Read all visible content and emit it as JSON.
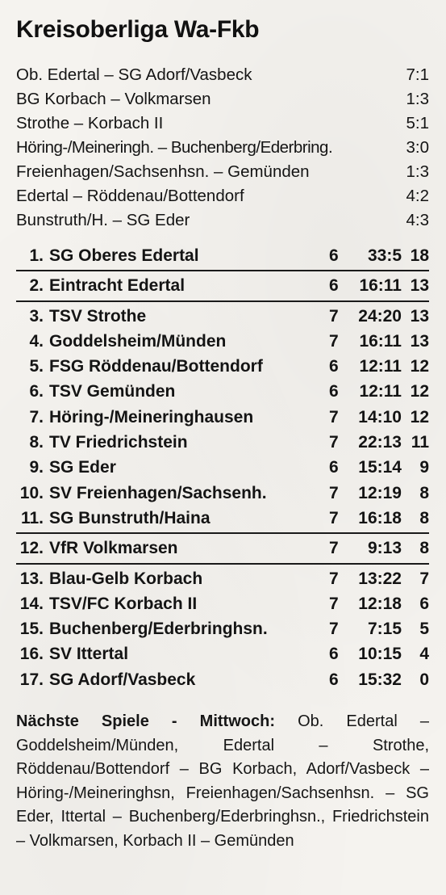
{
  "title": "Kreisoberliga Wa-Fkb",
  "results": [
    {
      "match": "Ob. Edertal – SG Adorf/Vasbeck",
      "score": "7:1"
    },
    {
      "match": "BG Korbach – Volkmarsen",
      "score": "1:3"
    },
    {
      "match": "Strothe – Korbach II",
      "score": "5:1"
    },
    {
      "match": "Höring-/Meineringh. – Buchenberg/Ederbring.",
      "score": "3:0"
    },
    {
      "match": "Freienhagen/Sachsenhsn. – Gemünden",
      "score": "1:3"
    },
    {
      "match": "Edertal – Röddenau/Bottendorf",
      "score": "4:2"
    },
    {
      "match": "Bunstruth/H. – SG Eder",
      "score": "4:3"
    }
  ],
  "table": [
    {
      "rank": "1.",
      "team": "SG Oberes Edertal",
      "games": "6",
      "goals": "33:5",
      "points": "18"
    },
    {
      "rank": "2.",
      "team": "Eintracht Edertal",
      "games": "6",
      "goals": "16:11",
      "points": "13"
    },
    {
      "rank": "3.",
      "team": "TSV Strothe",
      "games": "7",
      "goals": "24:20",
      "points": "13"
    },
    {
      "rank": "4.",
      "team": "Goddelsheim/Münden",
      "games": "7",
      "goals": "16:11",
      "points": "13"
    },
    {
      "rank": "5.",
      "team": "FSG Röddenau/Bottendorf",
      "games": "6",
      "goals": "12:11",
      "points": "12"
    },
    {
      "rank": "6.",
      "team": "TSV Gemünden",
      "games": "6",
      "goals": "12:11",
      "points": "12"
    },
    {
      "rank": "7.",
      "team": "Höring-/Meineringhausen",
      "games": "7",
      "goals": "14:10",
      "points": "12"
    },
    {
      "rank": "8.",
      "team": "TV Friedrichstein",
      "games": "7",
      "goals": "22:13",
      "points": "11"
    },
    {
      "rank": "9.",
      "team": "SG Eder",
      "games": "6",
      "goals": "15:14",
      "points": "9"
    },
    {
      "rank": "10.",
      "team": "SV Freienhagen/Sachsenh.",
      "games": "7",
      "goals": "12:19",
      "points": "8"
    },
    {
      "rank": "11.",
      "team": "SG Bunstruth/Haina",
      "games": "7",
      "goals": "16:18",
      "points": "8"
    },
    {
      "rank": "12.",
      "team": "VfR Volkmarsen",
      "games": "7",
      "goals": "9:13",
      "points": "8"
    },
    {
      "rank": "13.",
      "team": "Blau-Gelb Korbach",
      "games": "7",
      "goals": "13:22",
      "points": "7"
    },
    {
      "rank": "14.",
      "team": "TSV/FC Korbach II",
      "games": "7",
      "goals": "12:18",
      "points": "6"
    },
    {
      "rank": "15.",
      "team": "Buchenberg/Ederbringhsn.",
      "games": "7",
      "goals": "7:15",
      "points": "5"
    },
    {
      "rank": "16.",
      "team": "SV Ittertal",
      "games": "6",
      "goals": "10:15",
      "points": "4"
    },
    {
      "rank": "17.",
      "team": "SG Adorf/Vasbeck",
      "games": "6",
      "goals": "15:32",
      "points": "0"
    }
  ],
  "next_games": {
    "label": "Nächste Spiele - Mittwoch:",
    "text": "Ob. Edertal – Goddelsheim/Münden, Edertal – Strothe, Röddenau/Bottendorf – BG Korbach, Adorf/Vasbeck – Höring-/Meineringhsn, Freienhagen/Sachsenhsn. – SG Eder, Ittertal – Buchenberg/Ederbringhsn., Friedrichstein – Volkmarsen, Korbach II – Gemünden"
  }
}
